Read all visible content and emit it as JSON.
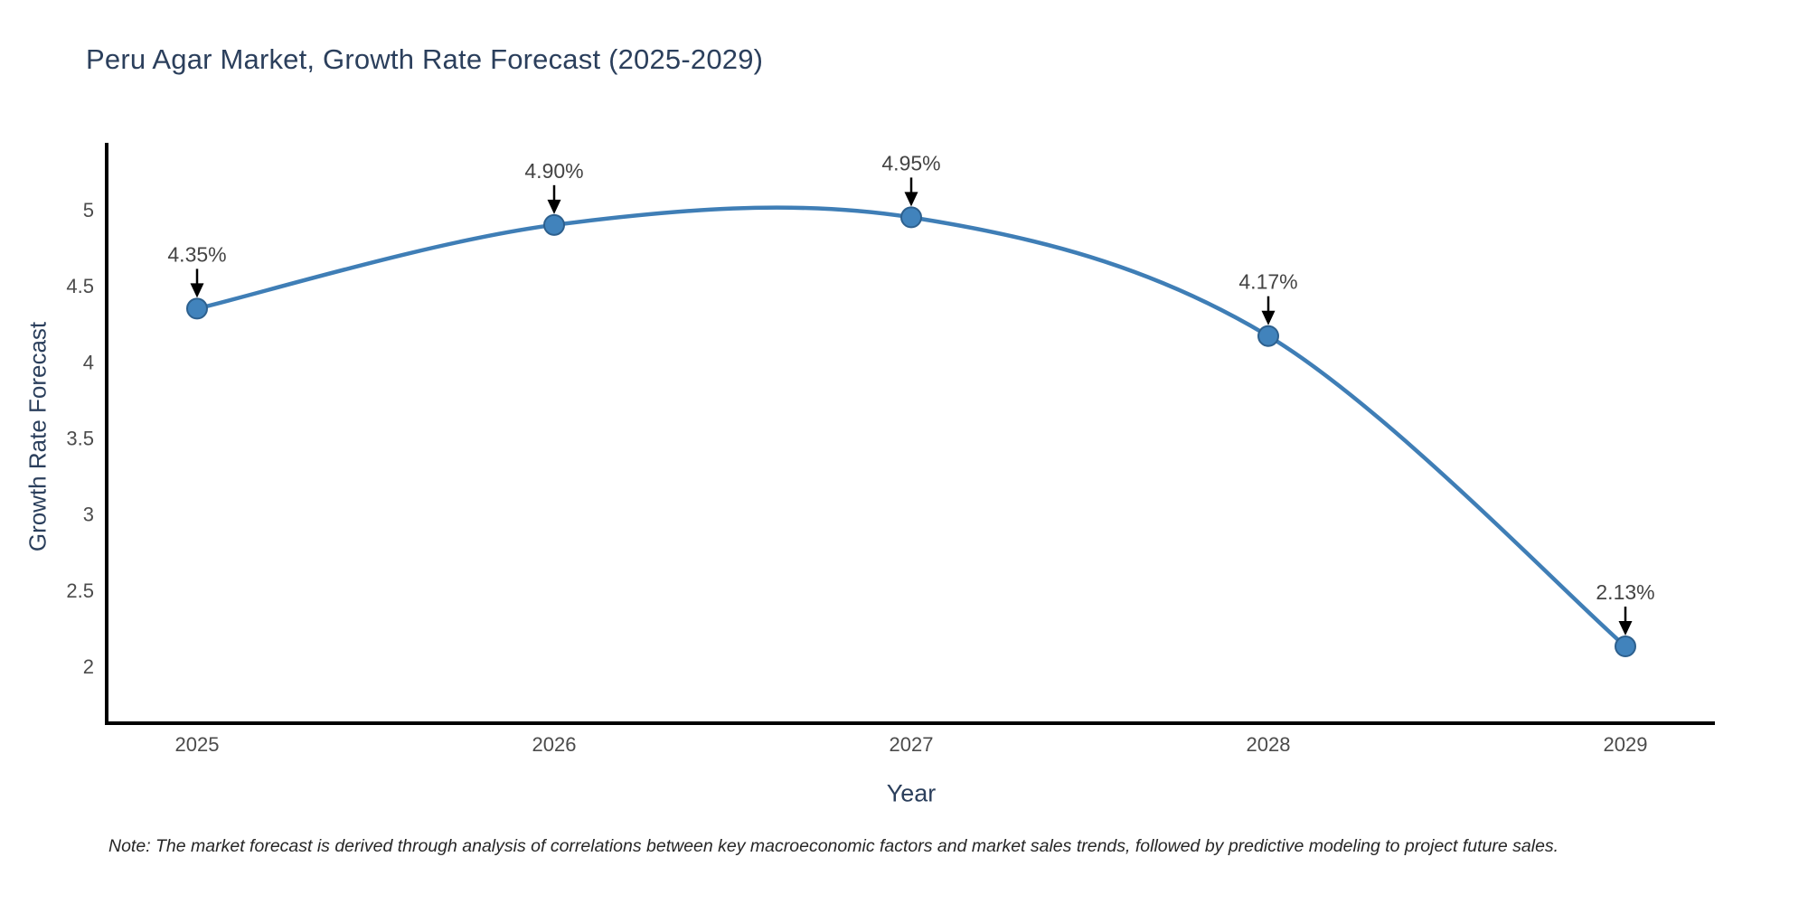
{
  "page": {
    "title": "Peru Agar Market, Growth Rate Forecast (2025-2029)",
    "note": "Note: The market forecast is derived through analysis of correlations between key macroeconomic factors and market sales trends, followed by predictive modeling to project future sales."
  },
  "chart_data": {
    "type": "line",
    "title": "Peru Agar Market, Growth Rate Forecast (2025-2029)",
    "xlabel": "Year",
    "ylabel": "Growth Rate Forecast",
    "x": [
      2025,
      2026,
      2027,
      2028,
      2029
    ],
    "values": [
      4.35,
      4.9,
      4.95,
      4.17,
      2.13
    ],
    "point_labels": [
      "4.35%",
      "4.90%",
      "4.95%",
      "4.17%",
      "2.13%"
    ],
    "xtick_labels": [
      "2025",
      "2026",
      "2027",
      "2028",
      "2029"
    ],
    "yticks": [
      2,
      2.5,
      3,
      3.5,
      4,
      4.5,
      5
    ],
    "ylim": [
      1.63,
      5.42
    ],
    "xlim": [
      2024.74,
      2029.25
    ],
    "grid": false,
    "legend_position": "none",
    "line_shape": "spline",
    "annotation_arrows": true,
    "colors": {
      "line": "#3f7eb6",
      "marker_fill": "#4183bc",
      "marker_edge": "#2d608e",
      "axis_line": "#000000",
      "tick_label": "#4b4b4b",
      "annotation_text": "#444444",
      "arrow": "#000000",
      "title_text": "#2b3f5c"
    }
  }
}
